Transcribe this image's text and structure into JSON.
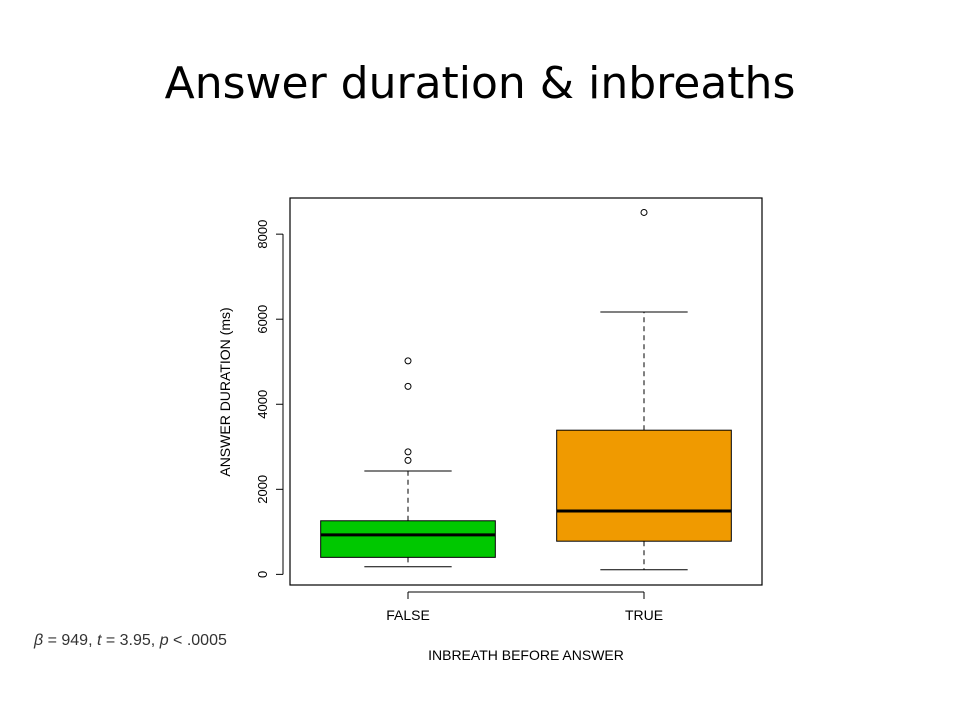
{
  "slide": {
    "title": "Answer duration & inbreaths",
    "stat_note": {
      "beta_label": "β",
      "beta_value": " = 949, ",
      "t_label": "t",
      "t_value": " = 3.95, ",
      "p_label": "p",
      "p_value": " < .0005"
    }
  },
  "chart_data": {
    "type": "box",
    "title": "",
    "xlabel": "INBREATH BEFORE ANSWER",
    "ylabel": "ANSWER DURATION (ms)",
    "ylim": [
      -250,
      8850
    ],
    "yticks": [
      0,
      2000,
      4000,
      6000,
      8000
    ],
    "categories": [
      "FALSE",
      "TRUE"
    ],
    "boxes": [
      {
        "category": "FALSE",
        "color": "#00c800",
        "whisker_low": 180,
        "q1": 400,
        "median": 930,
        "q3": 1260,
        "whisker_high": 2430,
        "outliers": [
          2680,
          2880,
          4420,
          5020
        ]
      },
      {
        "category": "TRUE",
        "color": "#f09a00",
        "whisker_low": 110,
        "q1": 780,
        "median": 1490,
        "q3": 3390,
        "whisker_high": 6170,
        "outliers": [
          8510
        ]
      }
    ],
    "grid": false,
    "legend": "none"
  }
}
